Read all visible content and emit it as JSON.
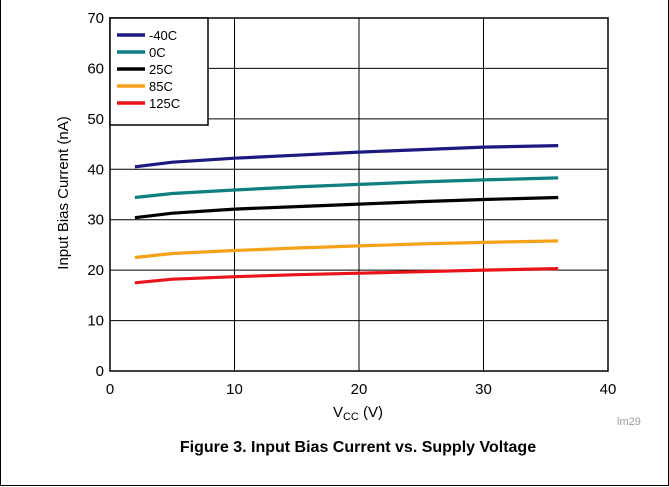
{
  "figure": {
    "caption": "Figure 3. Input Bias Current vs. Supply Voltage",
    "id_label": "lm29"
  },
  "chart_data": {
    "type": "line",
    "xlabel_main": "V",
    "xlabel_sub": "CC",
    "xlabel_unit": " (V)",
    "ylabel": "Input Bias Current (nA)",
    "xlim": [
      0,
      40
    ],
    "ylim": [
      0,
      70
    ],
    "x_ticks": [
      0,
      10,
      20,
      30,
      40
    ],
    "y_ticks": [
      0,
      10,
      20,
      30,
      40,
      50,
      60,
      70
    ],
    "grid": true,
    "legend_position": "top-left",
    "series": [
      {
        "name": "-40C",
        "color": "#1a1a80",
        "x": [
          2,
          5,
          10,
          15,
          20,
          25,
          30,
          36
        ],
        "y": [
          40.5,
          41.4,
          42.2,
          42.8,
          43.4,
          43.9,
          44.4,
          44.7
        ]
      },
      {
        "name": "0C",
        "color": "#0f7f82",
        "x": [
          2,
          5,
          10,
          15,
          20,
          25,
          30,
          36
        ],
        "y": [
          34.4,
          35.2,
          35.9,
          36.5,
          37.0,
          37.5,
          37.9,
          38.3
        ]
      },
      {
        "name": "25C",
        "color": "#000000",
        "x": [
          2,
          5,
          10,
          15,
          20,
          25,
          30,
          36
        ],
        "y": [
          30.4,
          31.3,
          32.1,
          32.6,
          33.1,
          33.6,
          34.0,
          34.4
        ]
      },
      {
        "name": "85C",
        "color": "#f5a219",
        "x": [
          2,
          5,
          10,
          15,
          20,
          25,
          30,
          36
        ],
        "y": [
          22.5,
          23.3,
          23.9,
          24.4,
          24.8,
          25.2,
          25.5,
          25.8
        ]
      },
      {
        "name": "125C",
        "color": "#e8141a",
        "x": [
          2,
          5,
          10,
          15,
          20,
          25,
          30,
          36
        ],
        "y": [
          17.5,
          18.2,
          18.7,
          19.1,
          19.4,
          19.7,
          20.0,
          20.3
        ]
      }
    ]
  }
}
